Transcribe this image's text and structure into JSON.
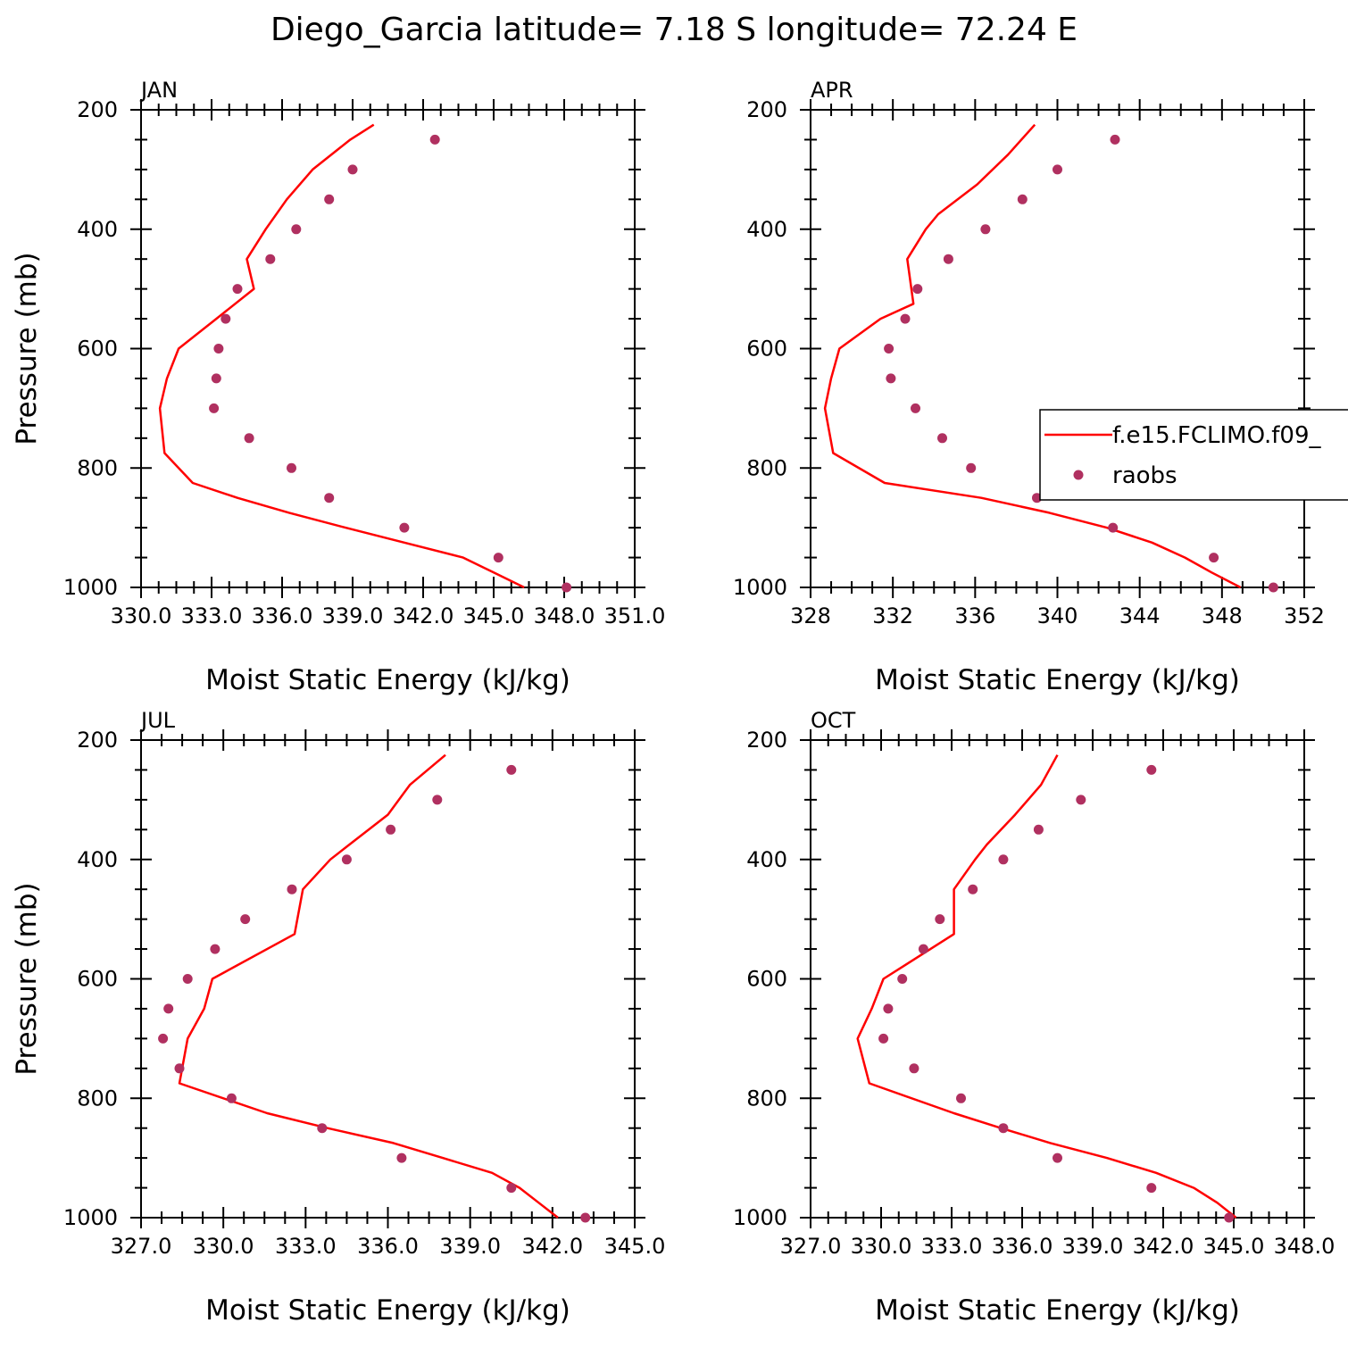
{
  "title": "Diego_Garcia  latitude= 7.18 S longitude= 72.24 E",
  "colors": {
    "model": "#ff0000",
    "obs": "#b03060",
    "axis": "#000000"
  },
  "legend": {
    "model_label": "f.e15.FCLIMO.f09_",
    "obs_label": "raobs"
  },
  "chart_data": [
    {
      "type": "line",
      "panel": "JAN",
      "xlabel": "Moist Static Energy (kJ/kg)",
      "ylabel": "Pressure (mb)",
      "xlim": [
        330,
        351
      ],
      "ylim": [
        1000,
        200
      ],
      "x_tick_labels": [
        "330.0",
        "333.0",
        "336.0",
        "339.0",
        "342.0",
        "345.0",
        "348.0",
        "351.0"
      ],
      "y_tick_labels": [
        "200",
        "400",
        "600",
        "800",
        "1000"
      ],
      "model": {
        "p": [
          1000,
          975,
          950,
          925,
          900,
          875,
          850,
          825,
          775,
          700,
          650,
          600,
          550,
          500,
          450,
          400,
          350,
          300,
          250,
          225
        ],
        "mse": [
          346.3,
          345.0,
          343.7,
          341.2,
          338.7,
          336.3,
          334.1,
          332.2,
          331.0,
          330.8,
          331.1,
          331.6,
          333.2,
          334.8,
          334.5,
          335.3,
          336.2,
          337.3,
          338.9,
          339.9
        ]
      },
      "obs": {
        "p": [
          1000,
          950,
          900,
          850,
          800,
          750,
          700,
          650,
          600,
          550,
          500,
          450,
          400,
          350,
          300,
          250
        ],
        "mse": [
          348.1,
          345.2,
          341.2,
          338.0,
          336.4,
          334.6,
          333.1,
          333.2,
          333.3,
          333.6,
          334.1,
          335.5,
          336.6,
          338.0,
          339.0,
          342.5
        ]
      }
    },
    {
      "type": "line",
      "panel": "APR",
      "xlabel": "Moist Static Energy (kJ/kg)",
      "ylabel": "",
      "xlim": [
        328,
        352
      ],
      "ylim": [
        1000,
        200
      ],
      "x_tick_labels": [
        "328",
        "332",
        "336",
        "340",
        "344",
        "348",
        "352"
      ],
      "y_tick_labels": [
        "200",
        "400",
        "600",
        "800",
        "1000"
      ],
      "model": {
        "p": [
          1000,
          975,
          950,
          925,
          900,
          875,
          850,
          825,
          775,
          700,
          650,
          600,
          550,
          525,
          450,
          400,
          375,
          325,
          275,
          225
        ],
        "mse": [
          348.9,
          347.5,
          346.2,
          344.6,
          342.4,
          339.6,
          336.3,
          331.6,
          329.1,
          328.7,
          329.0,
          329.4,
          331.4,
          333.0,
          332.7,
          333.6,
          334.2,
          336.1,
          337.6,
          338.9
        ]
      },
      "obs": {
        "p": [
          1000,
          950,
          900,
          850,
          800,
          750,
          700,
          650,
          600,
          550,
          500,
          450,
          400,
          350,
          300,
          250
        ],
        "mse": [
          350.5,
          347.6,
          342.7,
          339.0,
          335.8,
          334.4,
          333.1,
          331.9,
          331.8,
          332.6,
          333.2,
          334.7,
          336.5,
          338.3,
          340.0,
          342.8
        ]
      }
    },
    {
      "type": "line",
      "panel": "JUL",
      "xlabel": "Moist Static Energy (kJ/kg)",
      "ylabel": "Pressure (mb)",
      "xlim": [
        327,
        345
      ],
      "ylim": [
        1000,
        200
      ],
      "x_tick_labels": [
        "327.0",
        "330.0",
        "333.0",
        "336.0",
        "339.0",
        "342.0",
        "345.0"
      ],
      "y_tick_labels": [
        "200",
        "400",
        "600",
        "800",
        "1000"
      ],
      "model": {
        "p": [
          1000,
          975,
          950,
          925,
          900,
          875,
          850,
          825,
          775,
          700,
          650,
          600,
          525,
          450,
          400,
          375,
          325,
          275,
          225
        ],
        "mse": [
          342.2,
          341.5,
          340.8,
          339.8,
          338.0,
          336.2,
          333.8,
          331.6,
          328.4,
          328.7,
          329.3,
          329.6,
          332.6,
          332.9,
          333.9,
          334.6,
          336.0,
          336.8,
          338.1
        ]
      },
      "obs": {
        "p": [
          1000,
          950,
          900,
          850,
          800,
          750,
          700,
          650,
          600,
          550,
          500,
          450,
          400,
          350,
          300,
          250
        ],
        "mse": [
          343.2,
          340.5,
          336.5,
          333.6,
          330.3,
          328.4,
          327.8,
          328.0,
          328.7,
          329.7,
          330.8,
          332.5,
          334.5,
          336.1,
          337.8,
          340.5
        ]
      }
    },
    {
      "type": "line",
      "panel": "OCT",
      "xlabel": "Moist Static Energy (kJ/kg)",
      "ylabel": "",
      "xlim": [
        327,
        348
      ],
      "ylim": [
        1000,
        200
      ],
      "x_tick_labels": [
        "327.0",
        "330.0",
        "333.0",
        "336.0",
        "339.0",
        "342.0",
        "345.0",
        "348.0"
      ],
      "y_tick_labels": [
        "200",
        "400",
        "600",
        "800",
        "1000"
      ],
      "model": {
        "p": [
          1000,
          975,
          950,
          925,
          900,
          875,
          850,
          825,
          775,
          700,
          650,
          600,
          525,
          450,
          400,
          375,
          325,
          275,
          225
        ],
        "mse": [
          345.1,
          344.3,
          343.3,
          341.7,
          339.6,
          337.2,
          335.1,
          333.1,
          329.5,
          329.0,
          329.6,
          330.1,
          333.1,
          333.1,
          334.0,
          334.5,
          335.7,
          336.8,
          337.5
        ]
      },
      "obs": {
        "p": [
          1000,
          950,
          900,
          850,
          800,
          750,
          700,
          650,
          600,
          550,
          500,
          450,
          400,
          350,
          300,
          250
        ],
        "mse": [
          344.8,
          341.5,
          337.5,
          335.2,
          333.4,
          331.4,
          330.1,
          330.3,
          330.9,
          331.8,
          332.5,
          333.9,
          335.2,
          336.7,
          338.5,
          341.5
        ]
      }
    }
  ]
}
